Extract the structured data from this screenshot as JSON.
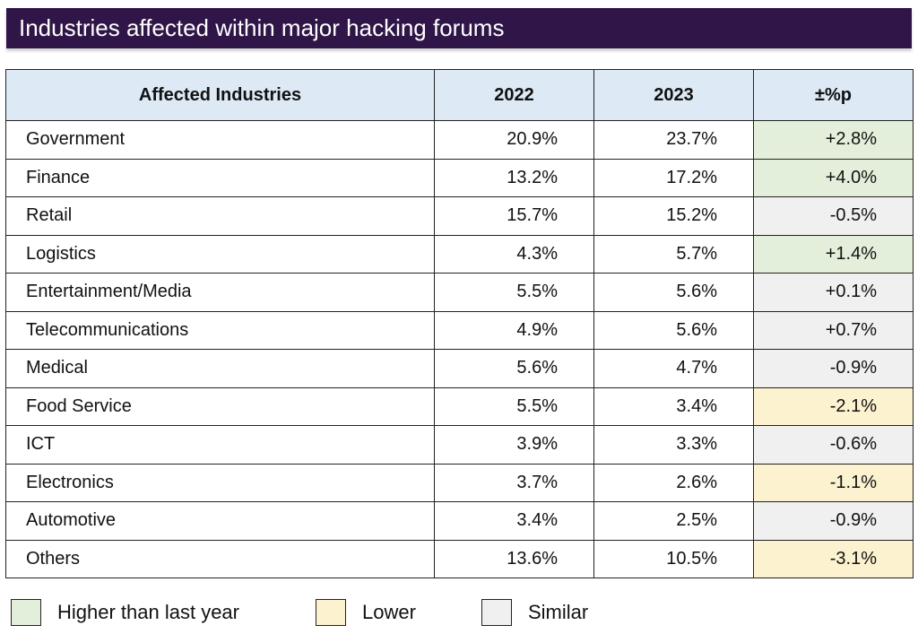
{
  "title": "Industries affected within major hacking forums",
  "colors": {
    "title_bg": "#301648",
    "header_bg": "#dde9f5",
    "higher": "#e3efda",
    "lower": "#fdf2cf",
    "similar": "#f0f0f0"
  },
  "chart_data": {
    "type": "table",
    "columns": [
      "Affected Industries",
      "2022",
      "2023",
      "±%p"
    ],
    "rows": [
      {
        "industry": "Government",
        "y2022": "20.9%",
        "y2023": "23.7%",
        "change": "+2.8%",
        "status": "higher"
      },
      {
        "industry": "Finance",
        "y2022": "13.2%",
        "y2023": "17.2%",
        "change": "+4.0%",
        "status": "higher"
      },
      {
        "industry": "Retail",
        "y2022": "15.7%",
        "y2023": "15.2%",
        "change": "-0.5%",
        "status": "similar"
      },
      {
        "industry": "Logistics",
        "y2022": "4.3%",
        "y2023": "5.7%",
        "change": "+1.4%",
        "status": "higher"
      },
      {
        "industry": "Entertainment/Media",
        "y2022": "5.5%",
        "y2023": "5.6%",
        "change": "+0.1%",
        "status": "similar"
      },
      {
        "industry": "Telecommunications",
        "y2022": "4.9%",
        "y2023": "5.6%",
        "change": "+0.7%",
        "status": "similar"
      },
      {
        "industry": "Medical",
        "y2022": "5.6%",
        "y2023": "4.7%",
        "change": "-0.9%",
        "status": "similar"
      },
      {
        "industry": "Food Service",
        "y2022": "5.5%",
        "y2023": "3.4%",
        "change": "-2.1%",
        "status": "lower"
      },
      {
        "industry": "ICT",
        "y2022": "3.9%",
        "y2023": "3.3%",
        "change": "-0.6%",
        "status": "similar"
      },
      {
        "industry": "Electronics",
        "y2022": "3.7%",
        "y2023": "2.6%",
        "change": "-1.1%",
        "status": "lower"
      },
      {
        "industry": "Automotive",
        "y2022": "3.4%",
        "y2023": "2.5%",
        "change": "-0.9%",
        "status": "similar"
      },
      {
        "industry": "Others",
        "y2022": "13.6%",
        "y2023": "10.5%",
        "change": "-3.1%",
        "status": "lower"
      }
    ]
  },
  "legend": [
    {
      "status": "higher",
      "label": "Higher than last year"
    },
    {
      "status": "lower",
      "label": "Lower"
    },
    {
      "status": "similar",
      "label": "Similar"
    }
  ]
}
